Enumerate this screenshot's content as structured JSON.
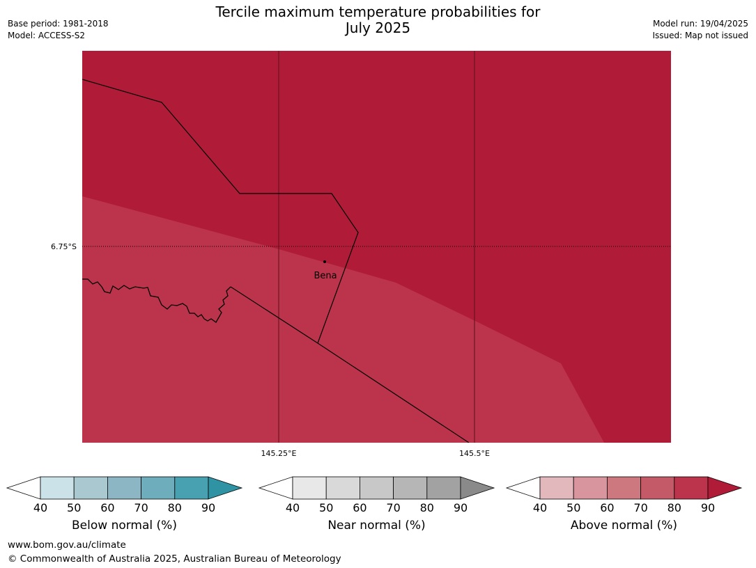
{
  "header": {
    "title_line1": "Tercile maximum temperature probabilities for",
    "title_line2": "July 2025",
    "base_period": "Base period: 1981-2018",
    "model": "Model: ACCESS-S2",
    "model_run": "Model run: 19/04/2025",
    "issued": "Issued: Map not issued"
  },
  "map": {
    "colors": {
      "prob_90_plus": "#b01c38",
      "prob_80_90": "#bc344b"
    },
    "latitude_label": "6.75°S",
    "longitude_labels": [
      "145.25°E",
      "145.5°E"
    ],
    "place": {
      "name": "Bena"
    }
  },
  "legends": [
    {
      "title": "Below normal (%)",
      "ticks": [
        "40",
        "50",
        "60",
        "70",
        "80",
        "90"
      ],
      "colors": [
        "#ffffff",
        "#cbe2e8",
        "#aac8cf",
        "#8cb6c3",
        "#6eaebc",
        "#48a1b0",
        "#2f93a4"
      ]
    },
    {
      "title": "Near normal (%)",
      "ticks": [
        "40",
        "50",
        "60",
        "70",
        "80",
        "90"
      ],
      "colors": [
        "#ffffff",
        "#e8e8e8",
        "#d9d9d9",
        "#c8c8c8",
        "#b6b6b6",
        "#a2a2a2",
        "#8a8a8a"
      ]
    },
    {
      "title": "Above normal (%)",
      "ticks": [
        "40",
        "50",
        "60",
        "70",
        "80",
        "90"
      ],
      "colors": [
        "#ffffff",
        "#e2b8bd",
        "#d9959d",
        "#cd787f",
        "#c45a67",
        "#bc344b",
        "#b01c38"
      ]
    }
  ],
  "footer": {
    "website": "www.bom.gov.au/climate",
    "copyright": "© Commonwealth of Australia 2025, Australian Bureau of Meteorology"
  }
}
